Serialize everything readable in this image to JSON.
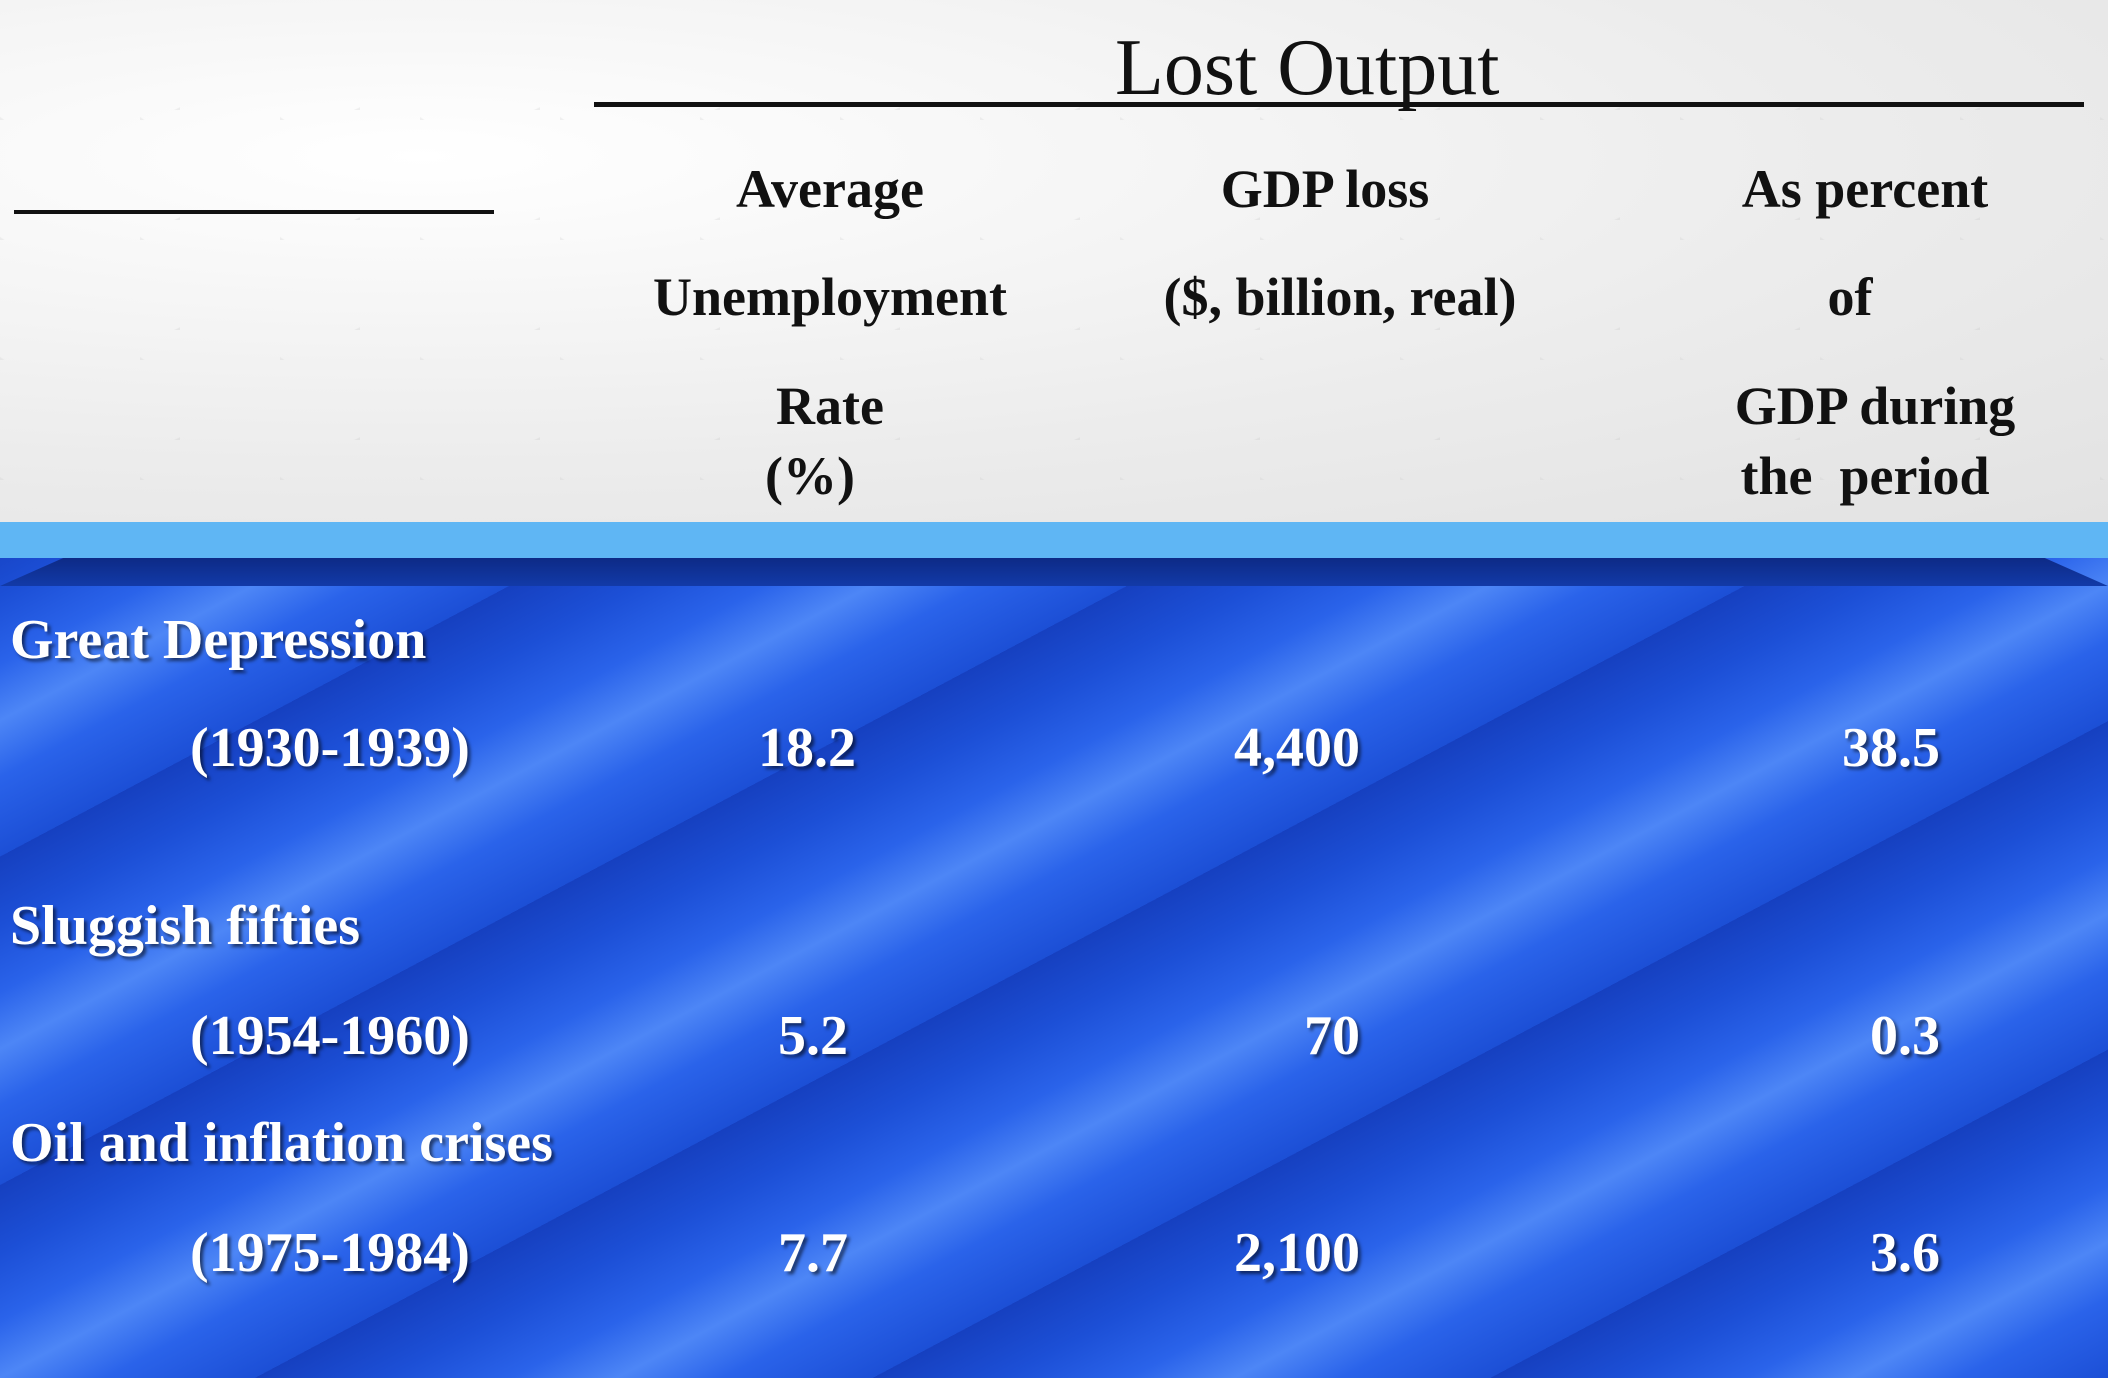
{
  "title": "Lost Output",
  "headers": {
    "col1": [
      "Average",
      "Unemployment",
      "Rate",
      "(%)"
    ],
    "col2": [
      "GDP loss",
      "($, billion, real)"
    ],
    "col3": [
      "As percent",
      "of",
      "GDP during",
      "the  period"
    ]
  },
  "rows": [
    {
      "name": "Great Depression",
      "period": "(1930-1939)",
      "unemployment": "18.2",
      "gdp_loss": "4,400",
      "percent": "38.5"
    },
    {
      "name": "Sluggish fifties",
      "period": "(1954-1960)",
      "unemployment": "5.2",
      "gdp_loss": "70",
      "percent": "0.3"
    },
    {
      "name": "Oil and inflation crises",
      "period": "(1975-1984)",
      "unemployment": "7.7",
      "gdp_loss": "2,100",
      "percent": "3.6"
    }
  ],
  "colors": {
    "header_bg": "#eeeeee",
    "band": "#5fb6f4",
    "table_bg": "#2a63ea",
    "text_light": "#ffffff"
  }
}
